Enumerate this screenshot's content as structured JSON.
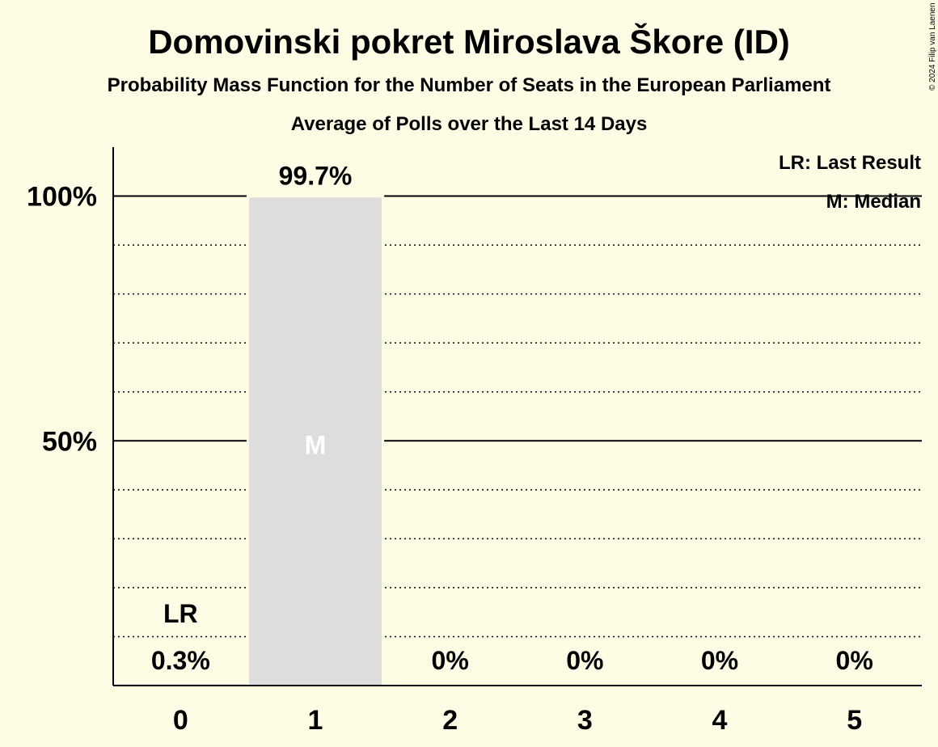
{
  "chart_data": {
    "type": "bar",
    "title": "Domovinski pokret Miroslava Škore (ID)",
    "subtitle": "Probability Mass Function for the Number of Seats in the European Parliament",
    "subtitle2": "Average of Polls over the Last 14 Days",
    "categories": [
      "0",
      "1",
      "2",
      "3",
      "4",
      "5"
    ],
    "values": [
      0.3,
      99.7,
      0,
      0,
      0,
      0
    ],
    "value_labels": [
      "0.3%",
      "99.7%",
      "0%",
      "0%",
      "0%",
      "0%"
    ],
    "ylim": [
      0,
      110
    ],
    "yticks": [
      {
        "value": 50,
        "label": "50%"
      },
      {
        "value": 100,
        "label": "100%"
      }
    ],
    "minor_grid_step": 10,
    "grid": true,
    "last_result_seat": "0",
    "last_result_mark": "LR",
    "median_seat": "1",
    "median_mark": "M",
    "legend": {
      "position": "top-right",
      "items": [
        "LR: Last Result",
        "M: Median"
      ]
    },
    "copyright": "© 2024 Filip van Laenen",
    "colors": {
      "background": "#fffce6",
      "bar": "#dddddd",
      "axis": "#000000",
      "text": "#111111",
      "median_text": "#ffffff"
    }
  }
}
